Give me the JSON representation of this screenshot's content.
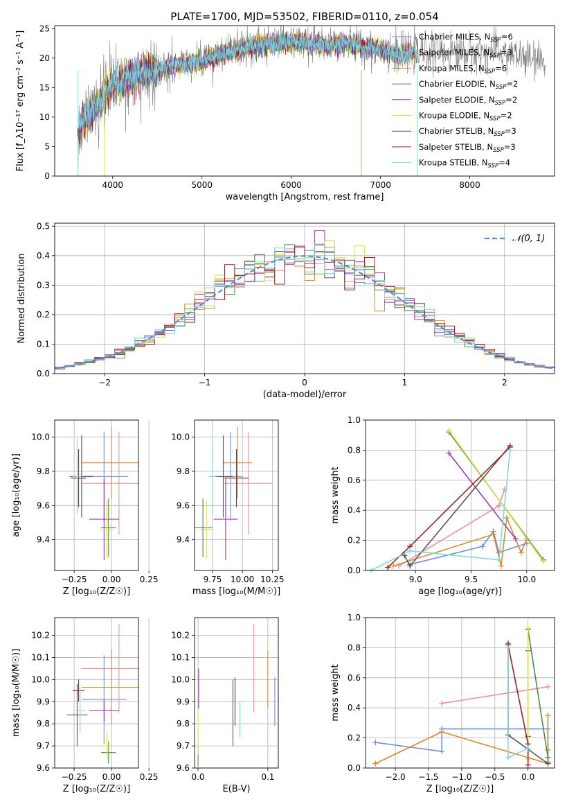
{
  "title": "PLATE=1700, MJD=53502, FIBERID=0110, z=0.054",
  "colors": {
    "chabrier_miles": "#6f8fd8",
    "salpeter_miles": "#e8939f",
    "kroupa_miles": "#d98a2e",
    "chabrier_elodie": "#4a8a4a",
    "salpeter_elodie": "#9b3bb5",
    "kroupa_elodie": "#d8e04a",
    "chabrier_stelib": "#555555",
    "salpeter_stelib": "#a02020",
    "kroupa_stelib": "#7fd8d8",
    "gaussian": "#5a8ad0"
  },
  "chart_data": [
    {
      "id": "spectrum",
      "type": "line",
      "xlabel": "wavelength [Angstrom, rest frame]",
      "ylabel": "Flux [f_λ10⁻¹⁷ erg cm⁻² s⁻¹ A⁻¹]",
      "xlim": [
        3350,
        8950
      ],
      "ylim": [
        0,
        25.5
      ],
      "xticks": [
        4000,
        5000,
        6000,
        7000,
        8000
      ],
      "yticks": [
        0,
        5,
        10,
        15,
        20,
        25
      ],
      "legend_position": "right",
      "legend": [
        {
          "label": "Chabrier MILES, N",
          "sub": "SSP",
          "suffix": "=6",
          "color": "#6f8fd8"
        },
        {
          "label": "Salpeter MILES, N",
          "sub": "SSP",
          "suffix": "=3",
          "color": "#e8939f"
        },
        {
          "label": "Kroupa MILES, N",
          "sub": "SSP",
          "suffix": "=6",
          "color": "#d98a2e"
        },
        {
          "label": "Chabrier ELODIE, N",
          "sub": "SSP",
          "suffix": "=2",
          "color": "#4a8a4a"
        },
        {
          "label": "Salpeter ELODIE, N",
          "sub": "SSP",
          "suffix": "=2",
          "color": "#9b3bb5"
        },
        {
          "label": "Kroupa ELODIE, N",
          "sub": "SSP",
          "suffix": "=2",
          "color": "#d8e04a"
        },
        {
          "label": "Chabrier STELIB, N",
          "sub": "SSP",
          "suffix": "=3",
          "color": "#555555"
        },
        {
          "label": "Salpeter STELIB, N",
          "sub": "SSP",
          "suffix": "=3",
          "color": "#a02020"
        },
        {
          "label": "Kroupa STELIB, N",
          "sub": "SSP",
          "suffix": "=4",
          "color": "#7fd8d8"
        }
      ],
      "continuum": {
        "x": [
          3600,
          3700,
          3800,
          3900,
          4000,
          4200,
          4400,
          4600,
          4800,
          5000,
          5200,
          5400,
          5600,
          5800,
          6000,
          6200,
          6400,
          6600,
          6800,
          7000,
          7200,
          7400,
          7600,
          7800,
          8000,
          8200,
          8400,
          8600,
          8800
        ],
        "y": [
          9.5,
          11,
          12,
          14,
          15.5,
          17,
          17.5,
          18.5,
          19,
          19.5,
          20.5,
          21.5,
          22,
          22.5,
          22.8,
          22.5,
          22,
          22.5,
          22,
          21.5,
          20.5,
          21,
          21,
          21,
          21,
          21,
          21,
          20,
          19.5
        ]
      }
    },
    {
      "id": "residuals",
      "type": "histogram",
      "xlabel": "(data-model)/error",
      "ylabel": "Normed distribution",
      "xlim": [
        -2.5,
        2.5
      ],
      "ylim": [
        0,
        0.51
      ],
      "xticks": [
        -2,
        -1,
        0,
        1,
        2
      ],
      "xticklabels": [
        "−2",
        "−1",
        "0",
        "1",
        "2"
      ],
      "yticks": [
        0.0,
        0.1,
        0.2,
        0.3,
        0.4,
        0.5
      ],
      "yticklabels": [
        "0.0",
        "0.1",
        "0.2",
        "0.3",
        "0.4",
        "0.5"
      ],
      "legend": "𝒩(0, 1)",
      "legend_position": "top-right",
      "bin_width": 0.1,
      "gaussian": {
        "mu": 0,
        "sigma": 1
      }
    },
    {
      "id": "age_vs_Z",
      "type": "errorbar",
      "xlabel": "Z [log₁₀(Z/Z☉)]",
      "ylabel": "age  [log₁₀(age/yr)]",
      "xlim": [
        -0.38,
        0.18
      ],
      "ylim": [
        9.22,
        10.1
      ],
      "xticks": [
        -0.25,
        0,
        0.25
      ],
      "xticklabels": [
        "−0.25",
        "0.00",
        "0.25"
      ],
      "yticks": [
        9.4,
        9.6,
        9.8,
        10.0
      ],
      "yticklabels": [
        "9.4",
        "9.6",
        "9.8",
        "10.0"
      ],
      "points": [
        {
          "c": "chabrier_miles",
          "x": -0.05,
          "y": 9.77,
          "xe": 0.16,
          "ye": 0.26
        },
        {
          "c": "salpeter_miles",
          "x": 0.05,
          "y": 9.73,
          "xe": 0.25,
          "ye": 0.3
        },
        {
          "c": "kroupa_miles",
          "x": 0.0,
          "y": 9.85,
          "xe": 0.2,
          "ye": 0.21
        },
        {
          "c": "chabrier_elodie",
          "x": -0.02,
          "y": 9.47,
          "xe": 0.05,
          "ye": 0.17
        },
        {
          "c": "salpeter_elodie",
          "x": -0.05,
          "y": 9.52,
          "xe": 0.1,
          "ye": 0.24
        },
        {
          "c": "kroupa_elodie",
          "x": -0.03,
          "y": 9.46,
          "xe": 0.04,
          "ye": 0.17
        },
        {
          "c": "chabrier_stelib",
          "x": -0.2,
          "y": 9.77,
          "xe": 0.08,
          "ye": 0.24
        },
        {
          "c": "salpeter_stelib",
          "x": -0.22,
          "y": 9.76,
          "xe": 0.05,
          "ye": 0.17
        },
        {
          "c": "kroupa_stelib",
          "x": -0.23,
          "y": 9.77,
          "xe": 0.03,
          "ye": 0.22
        }
      ]
    },
    {
      "id": "age_vs_mass",
      "type": "errorbar",
      "xlabel": "mass [log₁₀(M/M☉)]",
      "ylabel": "",
      "xlim": [
        9.6,
        10.3
      ],
      "ylim": [
        9.22,
        10.1
      ],
      "xticks": [
        9.75,
        10.0,
        10.25
      ],
      "xticklabels": [
        "9.75",
        "10.00",
        "10.25"
      ],
      "yticks": [
        9.4,
        9.6,
        9.8,
        10.0
      ],
      "yticklabels": [
        "9.4",
        "9.6",
        "9.8",
        "10.0"
      ],
      "points": [
        {
          "c": "chabrier_miles",
          "x": 9.9,
          "y": 9.77,
          "xe": 0.1,
          "ye": 0.26
        },
        {
          "c": "salpeter_miles",
          "x": 10.05,
          "y": 9.73,
          "xe": 0.2,
          "ye": 0.3
        },
        {
          "c": "kroupa_miles",
          "x": 9.96,
          "y": 9.85,
          "xe": 0.12,
          "ye": 0.21
        },
        {
          "c": "chabrier_elodie",
          "x": 9.67,
          "y": 9.47,
          "xe": 0.08,
          "ye": 0.17
        },
        {
          "c": "salpeter_elodie",
          "x": 9.86,
          "y": 9.52,
          "xe": 0.1,
          "ye": 0.24
        },
        {
          "c": "kroupa_elodie",
          "x": 9.7,
          "y": 9.46,
          "xe": 0.05,
          "ye": 0.17
        },
        {
          "c": "chabrier_stelib",
          "x": 9.84,
          "y": 9.77,
          "xe": 0.08,
          "ye": 0.24
        },
        {
          "c": "salpeter_stelib",
          "x": 9.95,
          "y": 9.76,
          "xe": 0.1,
          "ye": 0.17
        },
        {
          "c": "kroupa_stelib",
          "x": 9.75,
          "y": 9.77,
          "xe": 0.03,
          "ye": 0.22
        }
      ]
    },
    {
      "id": "weight_vs_age",
      "type": "line",
      "xlabel": "age  [log₁₀(age/yr)]",
      "ylabel": "mass weight",
      "xlim": [
        8.55,
        10.25
      ],
      "ylim": [
        0,
        1.0
      ],
      "xticks": [
        9.0,
        9.5,
        10.0
      ],
      "xticklabels": [
        "9.0",
        "9.5",
        "10.0"
      ],
      "yticks": [
        0,
        0.2,
        0.4,
        0.6,
        0.8,
        1.0
      ],
      "yticklabels": [
        "0.0",
        "0.2",
        "0.4",
        "0.6",
        "0.8",
        "1.0"
      ],
      "series": [
        {
          "c": "chabrier_miles",
          "x": [
            8.95,
            9.6,
            9.7,
            9.75,
            10.0
          ],
          "y": [
            0.04,
            0.16,
            0.26,
            0.12,
            0.18
          ]
        },
        {
          "c": "salpeter_miles",
          "x": [
            8.85,
            9.75,
            9.8
          ],
          "y": [
            0.03,
            0.43,
            0.54
          ]
        },
        {
          "c": "kroupa_miles",
          "x": [
            8.8,
            9.7,
            9.77,
            9.82,
            9.95,
            10.0
          ],
          "y": [
            0.03,
            0.24,
            0.03,
            0.35,
            0.12,
            0.21
          ]
        },
        {
          "c": "chabrier_elodie",
          "x": [
            9.3,
            10.15
          ],
          "y": [
            0.92,
            0.07
          ]
        },
        {
          "c": "salpeter_elodie",
          "x": [
            9.3,
            9.9
          ],
          "y": [
            0.78,
            0.21
          ]
        },
        {
          "c": "kroupa_elodie",
          "x": [
            9.3,
            10.15
          ],
          "y": [
            0.93,
            0.06
          ]
        },
        {
          "c": "chabrier_stelib",
          "x": [
            8.9,
            8.95,
            9.85
          ],
          "y": [
            0.1,
            0.03,
            0.83
          ]
        },
        {
          "c": "salpeter_stelib",
          "x": [
            8.75,
            8.95,
            9.85
          ],
          "y": [
            0.02,
            0.16,
            0.82
          ]
        },
        {
          "c": "kroupa_stelib",
          "x": [
            8.6,
            8.95,
            9.75,
            9.85
          ],
          "y": [
            0.0,
            0.13,
            0.07,
            0.8
          ]
        }
      ]
    },
    {
      "id": "mass_vs_Z",
      "type": "errorbar",
      "xlabel": "Z [log₁₀(Z/Z☉)]",
      "ylabel": "mass [log₁₀(M/M☉)]",
      "xlim": [
        -0.38,
        0.18
      ],
      "ylim": [
        9.6,
        10.28
      ],
      "xticks": [
        -0.25,
        0,
        0.25
      ],
      "xticklabels": [
        "−0.25",
        "0.00",
        "0.25"
      ],
      "yticks": [
        9.6,
        9.7,
        9.8,
        9.9,
        10.0,
        10.1,
        10.2
      ],
      "yticklabels": [
        "9.6",
        "9.7",
        "9.8",
        "9.9",
        "10.0",
        "10.1",
        "10.2"
      ],
      "points": [
        {
          "c": "chabrier_miles",
          "x": -0.05,
          "y": 9.91,
          "xe": 0.15,
          "ye": 0.2
        },
        {
          "c": "salpeter_miles",
          "x": 0.05,
          "y": 10.05,
          "xe": 0.25,
          "ye": 0.2
        },
        {
          "c": "kroupa_miles",
          "x": 0.0,
          "y": 9.965,
          "xe": 0.2,
          "ye": 0.17
        },
        {
          "c": "chabrier_elodie",
          "x": -0.02,
          "y": 9.67,
          "xe": 0.05,
          "ye": 0.05
        },
        {
          "c": "salpeter_elodie",
          "x": -0.05,
          "y": 9.86,
          "xe": 0.1,
          "ye": 0.05
        },
        {
          "c": "kroupa_elodie",
          "x": -0.03,
          "y": 9.7,
          "xe": 0.04,
          "ye": 0.06
        },
        {
          "c": "chabrier_stelib",
          "x": -0.23,
          "y": 9.84,
          "xe": 0.07,
          "ye": 0.14
        },
        {
          "c": "salpeter_stelib",
          "x": -0.22,
          "y": 9.95,
          "xe": 0.04,
          "ye": 0.05
        },
        {
          "c": "kroupa_stelib",
          "x": -0.21,
          "y": 9.86,
          "xe": 0.03,
          "ye": 0.1
        }
      ]
    },
    {
      "id": "mass_vs_ebv",
      "type": "errorbar",
      "xlabel": "E(B-V)",
      "ylabel": "",
      "xlim": [
        -0.005,
        0.115
      ],
      "ylim": [
        9.6,
        10.28
      ],
      "xticks": [
        0.0,
        0.1
      ],
      "xticklabels": [
        "0.0",
        "0.1"
      ],
      "yticks": [
        9.6,
        9.7,
        9.8,
        9.9,
        10.0,
        10.1,
        10.2
      ],
      "yticklabels": [
        "9.6",
        "9.7",
        "9.8",
        "9.9",
        "10.0",
        "10.1",
        "10.2"
      ],
      "points": [
        {
          "c": "chabrier_miles",
          "x": 0.11,
          "y": 9.9,
          "xe": 0.0,
          "ye": 0.11
        },
        {
          "c": "salpeter_miles",
          "x": 0.08,
          "y": 10.05,
          "xe": 0.0,
          "ye": 0.2
        },
        {
          "c": "kroupa_miles",
          "x": 0.1,
          "y": 10.0,
          "xe": 0.0,
          "ye": 0.13
        },
        {
          "c": "chabrier_elodie",
          "x": 0.0,
          "y": 9.65,
          "xe": 0.0,
          "ye": 0.04
        },
        {
          "c": "salpeter_elodie",
          "x": 0.001,
          "y": 9.96,
          "xe": 0.0,
          "ye": 0.09
        },
        {
          "c": "kroupa_elodie",
          "x": 0.0,
          "y": 9.76,
          "xe": 0.0,
          "ye": 0.1
        },
        {
          "c": "chabrier_stelib",
          "x": 0.05,
          "y": 9.85,
          "xe": 0.0,
          "ye": 0.15
        },
        {
          "c": "salpeter_stelib",
          "x": 0.053,
          "y": 9.9,
          "xe": 0.0,
          "ye": 0.11
        },
        {
          "c": "kroupa_stelib",
          "x": 0.06,
          "y": 9.82,
          "xe": 0.0,
          "ye": 0.08
        }
      ]
    },
    {
      "id": "weight_vs_Z",
      "type": "line",
      "xlabel": "Z [log₁₀(Z/Z☉)]",
      "ylabel": "mass weight",
      "xlim": [
        -2.45,
        0.4
      ],
      "ylim": [
        0,
        1.0
      ],
      "xticks": [
        -2.0,
        -1.5,
        -1.0,
        -0.5,
        0.0
      ],
      "xticklabels": [
        "−2.0",
        "−1.5",
        "−1.0",
        "−0.5",
        "0.0"
      ],
      "yticks": [
        0,
        0.2,
        0.4,
        0.6,
        0.8,
        1.0
      ],
      "yticklabels": [
        "0.0",
        "0.2",
        "0.4",
        "0.6",
        "0.8",
        "1.0"
      ],
      "series": [
        {
          "c": "chabrier_miles",
          "x": [
            -2.3,
            -1.3,
            -1.3,
            0.3,
            0.3
          ],
          "y": [
            0.17,
            0.11,
            0.26,
            0.26,
            0.04
          ]
        },
        {
          "c": "salpeter_miles",
          "x": [
            -1.3,
            0.3
          ],
          "y": [
            0.43,
            0.54
          ]
        },
        {
          "c": "kroupa_miles",
          "x": [
            -2.3,
            -1.3,
            0.3,
            0.3,
            0.3
          ],
          "y": [
            0.03,
            0.24,
            0.03,
            0.35,
            0.12
          ]
        },
        {
          "c": "chabrier_elodie",
          "x": [
            0.0,
            0.3
          ],
          "y": [
            0.92,
            0.07
          ]
        },
        {
          "c": "salpeter_elodie",
          "x": [
            0.0,
            0.0
          ],
          "y": [
            0.78,
            0.21
          ]
        },
        {
          "c": "kroupa_elodie",
          "x": [
            0.0,
            0.0
          ],
          "y": [
            0.93,
            0.06
          ]
        },
        {
          "c": "chabrier_stelib",
          "x": [
            -0.3,
            -0.3,
            0.3
          ],
          "y": [
            0.83,
            0.22,
            0.03
          ]
        },
        {
          "c": "salpeter_stelib",
          "x": [
            -0.3,
            0.0,
            0.0
          ],
          "y": [
            0.82,
            0.16,
            0.02
          ]
        },
        {
          "c": "kroupa_stelib",
          "x": [
            -0.3,
            -0.3,
            0.0
          ],
          "y": [
            0.8,
            0.07,
            0.13
          ]
        }
      ]
    }
  ]
}
